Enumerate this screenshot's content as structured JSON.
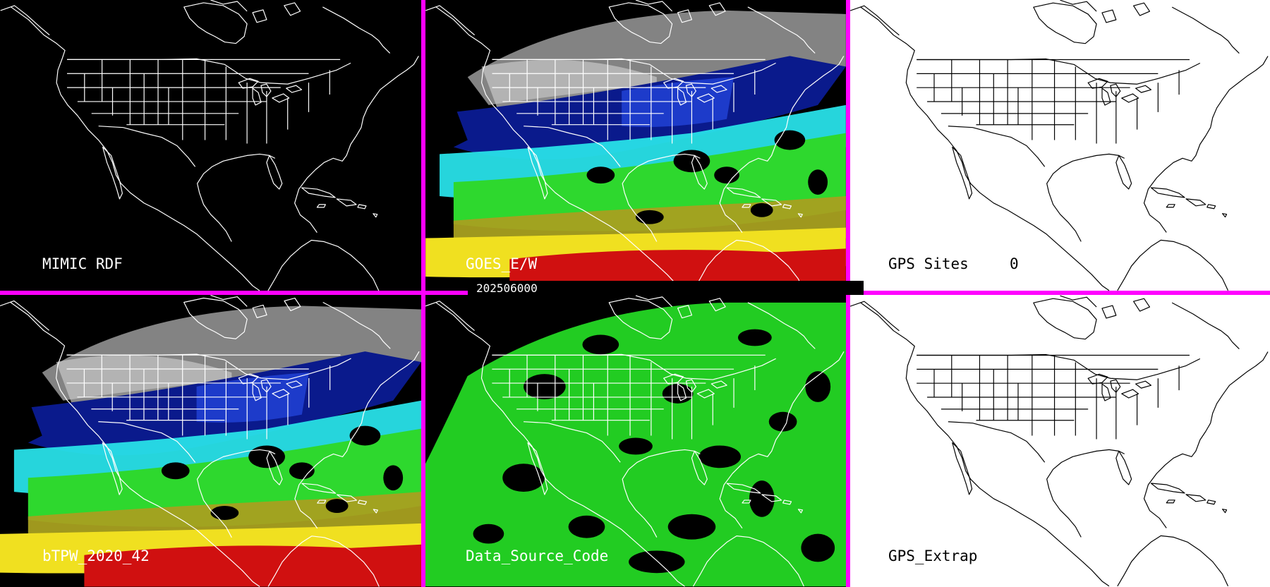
{
  "panels": {
    "mimic_rdf": {
      "label": "MIMIC RDF",
      "background": "#000000",
      "coastline": "#ffffff"
    },
    "goes_ew": {
      "label": "GOES_E/W",
      "background": "#000000",
      "coastline": "#ffffff"
    },
    "gps_sites": {
      "label": "GPS Sites",
      "count": "0",
      "background": "#ffffff",
      "coastline": "#000000"
    },
    "btpw": {
      "label": "bTPW_2020_42",
      "background": "#000000",
      "coastline": "#ffffff"
    },
    "data_source_code": {
      "label": "Data_Source_Code",
      "background": "#000000",
      "coastline": "#ffffff"
    },
    "gps_extrap": {
      "label": "GPS_Extrap",
      "background": "#ffffff",
      "coastline": "#000000"
    }
  },
  "timestamp": "202506000",
  "colors": {
    "divider": "#ff00ff",
    "tpw_gray": "#9a9a9a",
    "tpw_navy": "#0a1a8c",
    "tpw_blue": "#1f3fd0",
    "tpw_cyan": "#28e0e8",
    "tpw_green": "#2ed82e",
    "tpw_olive": "#a8a020",
    "tpw_yellow": "#f0e020",
    "tpw_red": "#d01010",
    "source_green": "#22cc22"
  }
}
